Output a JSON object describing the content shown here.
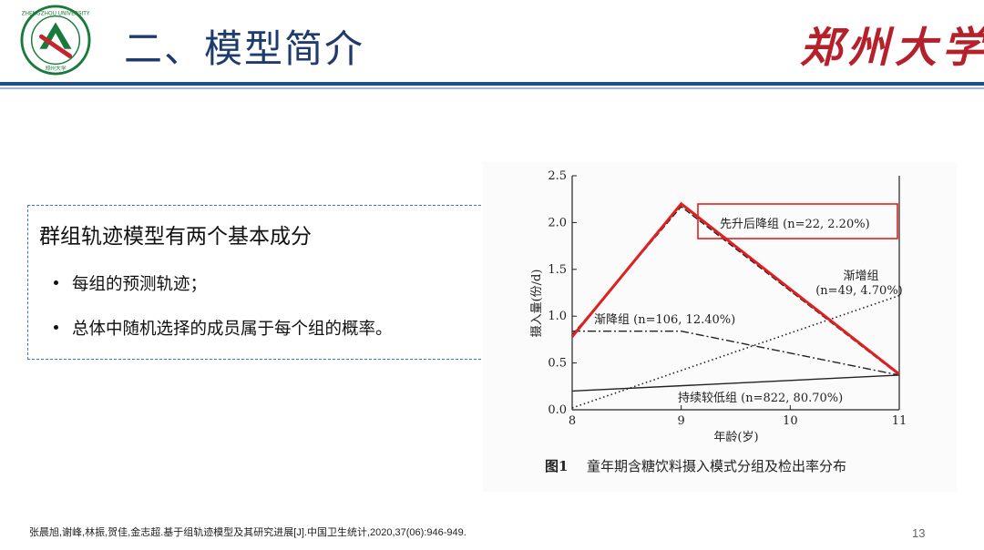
{
  "header": {
    "title": "二、模型简介",
    "university_name": "郑州大学",
    "logo_text_top": "ZHENGZHOU UNIVERSITY",
    "logo_text_bottom": "郑州大学"
  },
  "content": {
    "heading": "群组轨迹模型有两个基本成分",
    "bullets": [
      "每组的预测轨迹；",
      "总体中随机选择的成员属于每个组的概率。"
    ]
  },
  "figure": {
    "caption_label": "图1",
    "caption_text": "童年期含糖饮料摄入模式分组及检出率分布"
  },
  "chart_data": {
    "type": "line",
    "xlabel": "年龄(岁)",
    "ylabel": "摄入量(份/d)",
    "xlim": [
      8,
      11
    ],
    "ylim": [
      0,
      2.5
    ],
    "x_ticks": [
      "8",
      "9",
      "10",
      "11"
    ],
    "y_ticks": [
      "0.0",
      "0.5",
      "1.0",
      "1.5",
      "2.0",
      "2.5"
    ],
    "grid": false,
    "series": [
      {
        "name": "先升后降组",
        "label": "先升后降组 (n=22, 2.20%)",
        "style": "dashed",
        "x": [
          8,
          9,
          11
        ],
        "y": [
          0.8,
          2.17,
          0.37
        ]
      },
      {
        "name": "渐增组",
        "label_line1": "渐增组",
        "label_line2": "(n=49, 4.70%)",
        "style": "dotted",
        "x": [
          8,
          11
        ],
        "y": [
          0.02,
          1.22
        ]
      },
      {
        "name": "渐降组",
        "label": "渐降组 (n=106, 12.40%)",
        "style": "dashdot",
        "x": [
          8,
          9,
          11
        ],
        "y": [
          0.84,
          0.84,
          0.37
        ]
      },
      {
        "name": "持续较低组",
        "label": "持续较低组 (n=822, 80.70%)",
        "style": "solid",
        "x": [
          8,
          11
        ],
        "y": [
          0.2,
          0.37
        ]
      }
    ],
    "annotation": {
      "color": "#e02020",
      "line": {
        "x": [
          8,
          9,
          11
        ],
        "y": [
          0.78,
          2.2,
          0.38
        ]
      }
    }
  },
  "footer": {
    "citation": "张晨旭,谢峰,林振,贺佳,金志超.基于组轨迹模型及其研究进展[J].中国卫生统计,2020,37(06):946-949.",
    "page_number": "13"
  }
}
